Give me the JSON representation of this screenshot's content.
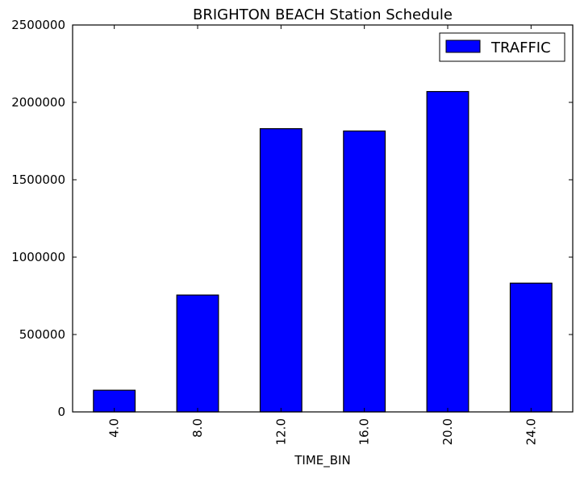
{
  "chart_data": {
    "type": "bar",
    "title": "BRIGHTON BEACH Station Schedule",
    "xlabel": "TIME_BIN",
    "ylabel": "",
    "categories": [
      "4.0",
      "8.0",
      "12.0",
      "16.0",
      "20.0",
      "24.0"
    ],
    "series": [
      {
        "name": "TRAFFIC",
        "color": "#0000ff",
        "values": [
          140000,
          755000,
          1830000,
          1815000,
          2070000,
          832000
        ]
      }
    ],
    "ylim": [
      0,
      2500000
    ],
    "yticks": [
      0,
      500000,
      1000000,
      1500000,
      2000000,
      2500000
    ],
    "ytick_labels": [
      "0",
      "500000",
      "1000000",
      "1500000",
      "2000000",
      "2500000"
    ],
    "grid": false,
    "legend_position": "top-right"
  }
}
